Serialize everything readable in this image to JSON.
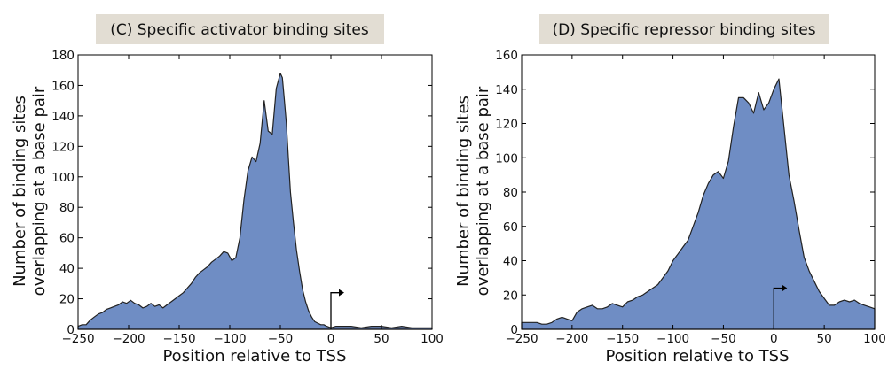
{
  "colors": {
    "area_fill": "#6f8dc4",
    "title_bg": "#e2ddd3",
    "line": "#222222"
  },
  "icons": {
    "tss_marker": "right-angle-arrow-icon"
  },
  "chart_data": [
    {
      "type": "area",
      "title": "(C) Specific activator binding sites",
      "xlabel": "Position relative to TSS",
      "ylabel": [
        "Number of binding sites",
        "overlapping at a base pair"
      ],
      "xlim": [
        -250,
        100
      ],
      "ylim": [
        0,
        180
      ],
      "xticks": [
        "−250",
        "−200",
        "−150",
        "−100",
        "−50",
        "0",
        "50",
        "100"
      ],
      "yticks": [
        "0",
        "20",
        "40",
        "60",
        "80",
        "100",
        "120",
        "140",
        "160",
        "180"
      ],
      "tss_marker": {
        "x": 0,
        "y": 24
      },
      "x": [
        -250,
        -246,
        -242,
        -238,
        -234,
        -230,
        -226,
        -222,
        -218,
        -214,
        -210,
        -206,
        -202,
        -198,
        -194,
        -190,
        -186,
        -182,
        -178,
        -174,
        -170,
        -166,
        -162,
        -158,
        -154,
        -150,
        -146,
        -142,
        -138,
        -134,
        -130,
        -126,
        -122,
        -118,
        -114,
        -110,
        -106,
        -102,
        -98,
        -94,
        -90,
        -86,
        -82,
        -78,
        -74,
        -70,
        -66,
        -62,
        -58,
        -54,
        -50,
        -48,
        -46,
        -44,
        -42,
        -40,
        -37,
        -34,
        -31,
        -28,
        -25,
        -22,
        -19,
        -16,
        -13,
        -10,
        -7,
        -4,
        0,
        5,
        10,
        20,
        30,
        40,
        50,
        60,
        70,
        80,
        90,
        100
      ],
      "values": [
        2,
        3,
        3,
        6,
        8,
        10,
        11,
        13,
        14,
        15,
        16,
        18,
        17,
        19,
        17,
        16,
        14,
        15,
        17,
        15,
        16,
        14,
        16,
        18,
        20,
        22,
        24,
        27,
        30,
        34,
        37,
        39,
        41,
        44,
        46,
        48,
        51,
        50,
        45,
        47,
        60,
        85,
        104,
        113,
        110,
        122,
        150,
        130,
        128,
        158,
        168,
        165,
        150,
        135,
        112,
        90,
        70,
        52,
        38,
        26,
        18,
        12,
        8,
        5,
        4,
        3,
        3,
        2,
        1,
        2,
        2,
        2,
        1,
        2,
        2,
        1,
        2,
        1,
        1,
        1
      ]
    },
    {
      "type": "area",
      "title": "(D) Specific repressor binding sites",
      "xlabel": "Position relative to TSS",
      "ylabel": [
        "Number of binding sites",
        "overlapping at a base pair"
      ],
      "xlim": [
        -250,
        100
      ],
      "ylim": [
        0,
        160
      ],
      "xticks": [
        "−250",
        "−200",
        "−150",
        "−100",
        "−50",
        "0",
        "50",
        "100"
      ],
      "yticks": [
        "0",
        "20",
        "40",
        "60",
        "80",
        "100",
        "120",
        "140",
        "160"
      ],
      "tss_marker": {
        "x": 0,
        "y": 24
      },
      "x": [
        -250,
        -245,
        -240,
        -235,
        -230,
        -225,
        -220,
        -215,
        -210,
        -205,
        -200,
        -195,
        -190,
        -185,
        -180,
        -175,
        -170,
        -165,
        -160,
        -155,
        -150,
        -145,
        -140,
        -135,
        -130,
        -125,
        -120,
        -115,
        -110,
        -105,
        -100,
        -95,
        -90,
        -85,
        -80,
        -75,
        -70,
        -65,
        -60,
        -55,
        -50,
        -45,
        -40,
        -35,
        -30,
        -25,
        -20,
        -15,
        -10,
        -5,
        0,
        5,
        10,
        15,
        20,
        25,
        30,
        35,
        40,
        45,
        50,
        55,
        60,
        65,
        70,
        75,
        80,
        85,
        90,
        95,
        100
      ],
      "values": [
        4,
        4,
        4,
        4,
        3,
        3,
        4,
        6,
        7,
        6,
        5,
        10,
        12,
        13,
        14,
        12,
        12,
        13,
        15,
        14,
        13,
        16,
        17,
        19,
        20,
        22,
        24,
        26,
        30,
        34,
        40,
        44,
        48,
        52,
        60,
        68,
        78,
        85,
        90,
        92,
        88,
        98,
        118,
        135,
        135,
        132,
        126,
        138,
        128,
        132,
        140,
        146,
        118,
        90,
        75,
        58,
        42,
        34,
        28,
        22,
        18,
        14,
        14,
        16,
        17,
        16,
        17,
        15,
        14,
        13,
        12
      ]
    }
  ]
}
